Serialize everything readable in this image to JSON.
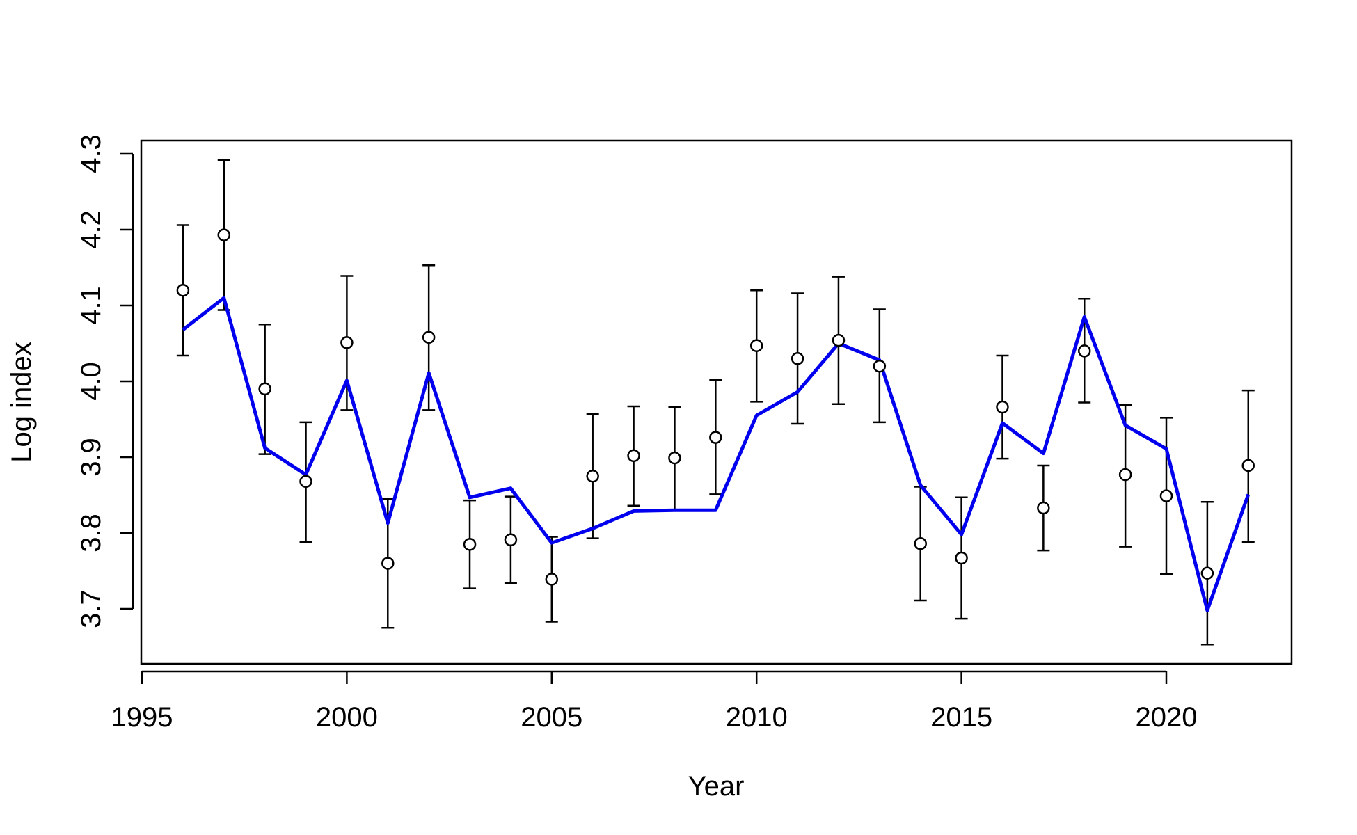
{
  "chart_data": {
    "type": "line",
    "xlabel": "Year",
    "ylabel": "Log index",
    "xlim": [
      1995,
      2023
    ],
    "ylim": [
      3.66,
      4.31
    ],
    "xticks": [
      1995,
      2000,
      2005,
      2010,
      2015,
      2020
    ],
    "yticks": [
      3.7,
      3.8,
      3.9,
      4.0,
      4.1,
      4.2,
      4.3
    ],
    "grid": false,
    "x": [
      1996,
      1997,
      1998,
      1999,
      2000,
      2001,
      2002,
      2003,
      2004,
      2005,
      2006,
      2007,
      2008,
      2009,
      2010,
      2011,
      2012,
      2013,
      2014,
      2015,
      2016,
      2017,
      2018,
      2019,
      2020,
      2021,
      2022
    ],
    "series": [
      {
        "type": "points_with_error_bars",
        "marker": "open-circle",
        "color": "#000000",
        "values": [
          4.12,
          4.193,
          3.99,
          3.868,
          4.051,
          3.76,
          4.058,
          3.785,
          3.791,
          3.739,
          3.875,
          3.902,
          3.899,
          3.926,
          4.047,
          4.03,
          4.054,
          4.02,
          3.786,
          3.767,
          3.966,
          3.833,
          4.04,
          3.877,
          3.849,
          3.747,
          3.889
        ],
        "lower": [
          4.034,
          4.094,
          3.904,
          3.788,
          3.962,
          3.675,
          3.962,
          3.727,
          3.734,
          3.683,
          3.793,
          3.836,
          3.831,
          3.851,
          3.973,
          3.944,
          3.97,
          3.946,
          3.711,
          3.687,
          3.898,
          3.777,
          3.972,
          3.782,
          3.746,
          3.653,
          3.788
        ],
        "upper": [
          4.206,
          4.292,
          4.075,
          3.946,
          4.139,
          3.845,
          4.153,
          3.843,
          3.848,
          3.795,
          3.957,
          3.967,
          3.966,
          4.002,
          4.12,
          4.116,
          4.138,
          4.095,
          3.861,
          3.847,
          4.034,
          3.889,
          4.109,
          3.969,
          3.952,
          3.841,
          3.988
        ]
      },
      {
        "type": "line",
        "color": "#0000ee",
        "values": [
          4.068,
          4.11,
          3.912,
          3.877,
          4.001,
          3.813,
          4.011,
          3.847,
          3.859,
          3.787,
          3.806,
          3.829,
          3.83,
          3.83,
          3.955,
          3.986,
          4.05,
          4.028,
          3.863,
          3.798,
          3.945,
          3.905,
          4.085,
          3.942,
          3.911,
          3.698,
          3.851
        ]
      }
    ]
  }
}
